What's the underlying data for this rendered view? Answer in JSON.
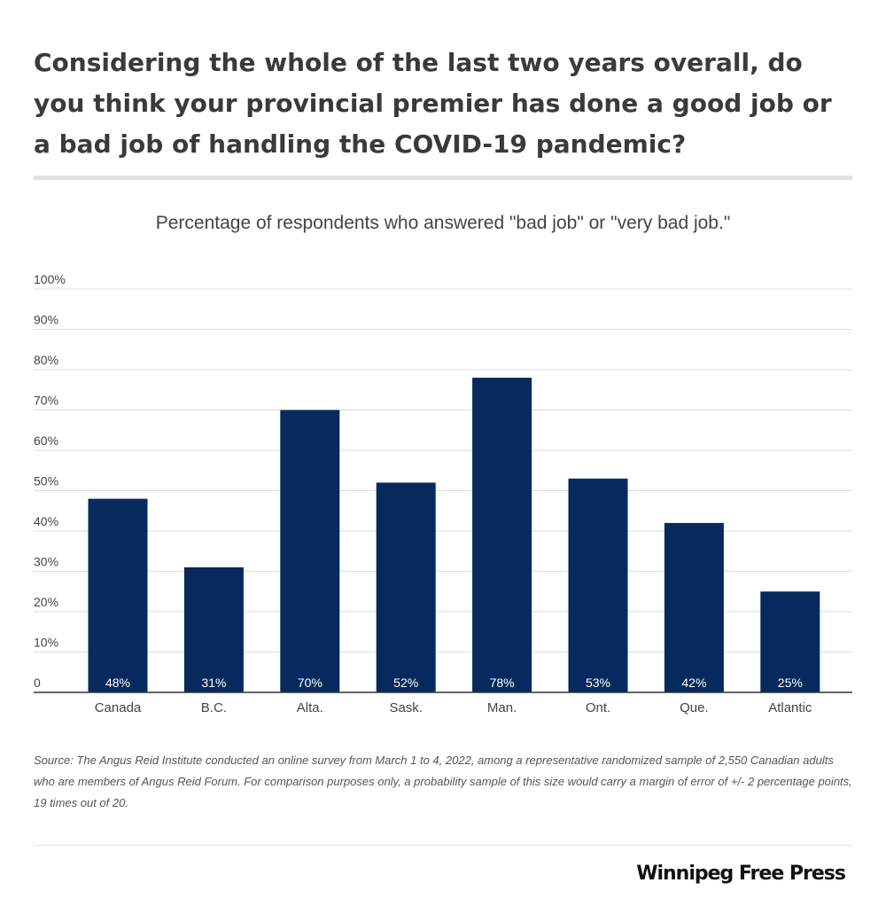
{
  "header": {
    "title": "Considering the whole of the last two years overall, do you think your provincial premier has done a good job or a bad job of handling the COVID-19 pandemic?",
    "subtitle": "Percentage of respondents who answered \"bad job\" or \"very bad job.\""
  },
  "chart_data": {
    "type": "bar",
    "categories": [
      "Canada",
      "B.C.",
      "Alta.",
      "Sask.",
      "Man.",
      "Ont.",
      "Que.",
      "Atlantic"
    ],
    "values": [
      48,
      31,
      70,
      52,
      78,
      53,
      42,
      25
    ],
    "value_labels": [
      "48%",
      "31%",
      "70%",
      "52%",
      "78%",
      "53%",
      "42%",
      "25%"
    ],
    "ylim": [
      0,
      100
    ],
    "yticks": [
      0,
      10,
      20,
      30,
      40,
      50,
      60,
      70,
      80,
      90,
      100
    ],
    "ytick_labels": [
      "0",
      "10%",
      "20%",
      "30%",
      "40%",
      "50%",
      "60%",
      "70%",
      "80%",
      "90%",
      "100%"
    ],
    "grid": true,
    "colors": {
      "bar": "#062a5e",
      "label": "#ffffff",
      "grid": "#dddddd",
      "axis": "#333333"
    }
  },
  "footer": {
    "source": "Source: The Angus Reid Institute conducted an online survey from March 1 to 4, 2022, among a representative randomized sample of 2,550 Canadian adults who are members of Angus Reid Forum. For comparison purposes only, a probability sample of this size would carry a margin of error of +/- 2 percentage points, 19 times out of 20.",
    "brand": "Winnipeg Free Press"
  }
}
